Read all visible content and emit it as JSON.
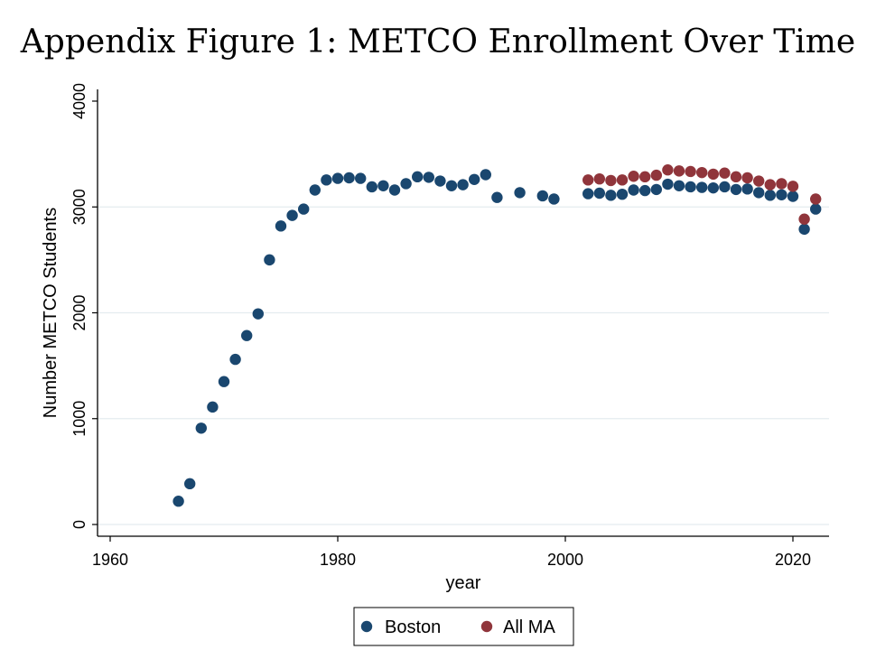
{
  "title": "Appendix Figure 1: METCO Enrollment Over Time",
  "chart_data": {
    "type": "scatter",
    "title": "Appendix Figure 1: METCO Enrollment Over Time",
    "xlabel": "year",
    "ylabel": "Number METCO Students",
    "xlim": [
      1960,
      2023
    ],
    "ylim": [
      0,
      4000
    ],
    "x_ticks": [
      1960,
      1980,
      2000,
      2020
    ],
    "y_ticks": [
      0,
      1000,
      2000,
      3000,
      4000
    ],
    "x_tick_labels": [
      "1960",
      "1980",
      "2000",
      "2020"
    ],
    "y_tick_labels": [
      "0",
      "1000",
      "2000",
      "3000",
      "4000"
    ],
    "grid": "horizontal",
    "legend_position": "bottom",
    "series": [
      {
        "name": "Boston",
        "color": "#1a476f",
        "points": [
          [
            1966,
            220
          ],
          [
            1967,
            385
          ],
          [
            1968,
            910
          ],
          [
            1969,
            1110
          ],
          [
            1970,
            1350
          ],
          [
            1971,
            1560
          ],
          [
            1972,
            1785
          ],
          [
            1973,
            1990
          ],
          [
            1974,
            2500
          ],
          [
            1975,
            2820
          ],
          [
            1976,
            2920
          ],
          [
            1977,
            2980
          ],
          [
            1978,
            3160
          ],
          [
            1979,
            3255
          ],
          [
            1980,
            3270
          ],
          [
            1981,
            3275
          ],
          [
            1982,
            3270
          ],
          [
            1983,
            3190
          ],
          [
            1984,
            3200
          ],
          [
            1985,
            3160
          ],
          [
            1986,
            3220
          ],
          [
            1987,
            3285
          ],
          [
            1988,
            3280
          ],
          [
            1989,
            3245
          ],
          [
            1990,
            3200
          ],
          [
            1991,
            3210
          ],
          [
            1992,
            3260
          ],
          [
            1993,
            3305
          ],
          [
            1994,
            3090
          ],
          [
            1996,
            3135
          ],
          [
            1998,
            3105
          ],
          [
            1999,
            3075
          ],
          [
            2002,
            3125
          ],
          [
            2003,
            3130
          ],
          [
            2004,
            3110
          ],
          [
            2005,
            3120
          ],
          [
            2006,
            3160
          ],
          [
            2007,
            3155
          ],
          [
            2008,
            3165
          ],
          [
            2009,
            3215
          ],
          [
            2010,
            3200
          ],
          [
            2011,
            3190
          ],
          [
            2012,
            3185
          ],
          [
            2013,
            3180
          ],
          [
            2014,
            3190
          ],
          [
            2015,
            3165
          ],
          [
            2016,
            3170
          ],
          [
            2017,
            3135
          ],
          [
            2018,
            3110
          ],
          [
            2019,
            3115
          ],
          [
            2020,
            3100
          ],
          [
            2021,
            2790
          ],
          [
            2022,
            2980
          ]
        ]
      },
      {
        "name": "All MA",
        "color": "#90353b",
        "points": [
          [
            2002,
            3255
          ],
          [
            2003,
            3265
          ],
          [
            2004,
            3250
          ],
          [
            2005,
            3255
          ],
          [
            2006,
            3290
          ],
          [
            2007,
            3285
          ],
          [
            2008,
            3300
          ],
          [
            2009,
            3350
          ],
          [
            2010,
            3340
          ],
          [
            2011,
            3335
          ],
          [
            2012,
            3325
          ],
          [
            2013,
            3310
          ],
          [
            2014,
            3320
          ],
          [
            2015,
            3285
          ],
          [
            2016,
            3275
          ],
          [
            2017,
            3245
          ],
          [
            2018,
            3210
          ],
          [
            2019,
            3220
          ],
          [
            2020,
            3195
          ],
          [
            2021,
            2885
          ],
          [
            2022,
            3075
          ]
        ]
      }
    ]
  }
}
